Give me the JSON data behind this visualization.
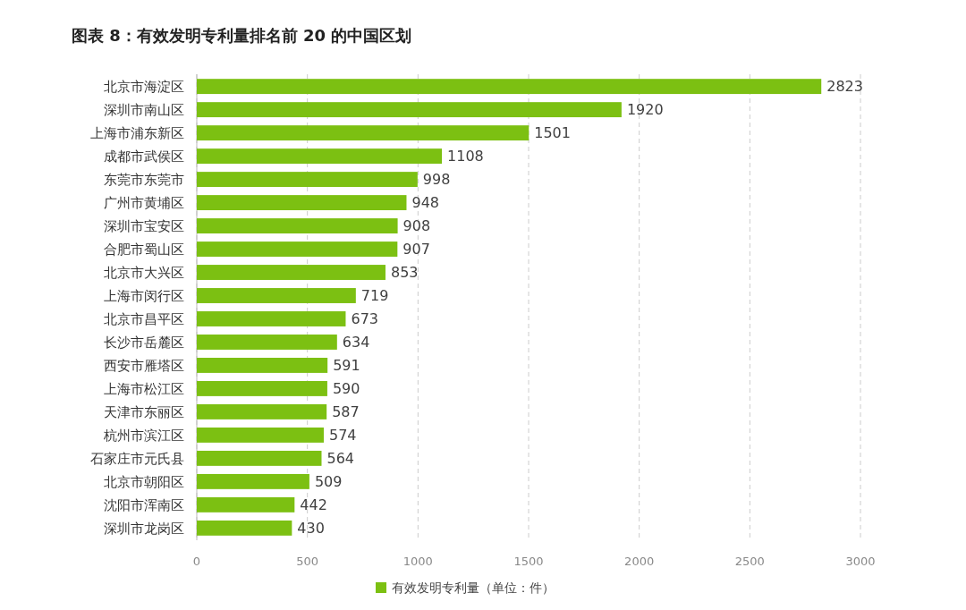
{
  "chart_data": {
    "type": "bar",
    "orientation": "horizontal",
    "title": "图表 8：有效发明专利量排名前 20 的中国区划",
    "categories": [
      "北京市海淀区",
      "深圳市南山区",
      "上海市浦东新区",
      "成都市武侯区",
      "东莞市东莞市",
      "广州市黄埔区",
      "深圳市宝安区",
      "合肥市蜀山区",
      "北京市大兴区",
      "上海市闵行区",
      "北京市昌平区",
      "长沙市岳麓区",
      "西安市雁塔区",
      "上海市松江区",
      "天津市东丽区",
      "杭州市滨江区",
      "石家庄市元氏县",
      "北京市朝阳区",
      "沈阳市浑南区",
      "深圳市龙岗区"
    ],
    "series": [
      {
        "name": "有效发明专利量（单位：件）",
        "color": "#7cc012",
        "values": [
          2823,
          1920,
          1501,
          1108,
          998,
          948,
          908,
          907,
          853,
          719,
          673,
          634,
          591,
          590,
          587,
          574,
          564,
          509,
          442,
          430
        ]
      }
    ],
    "xlim": [
      0,
      3000
    ],
    "xticks": [
      0,
      500,
      1000,
      1500,
      2000,
      2500,
      3000
    ],
    "grid": "x",
    "legend": "bottom",
    "data_labels": true
  }
}
